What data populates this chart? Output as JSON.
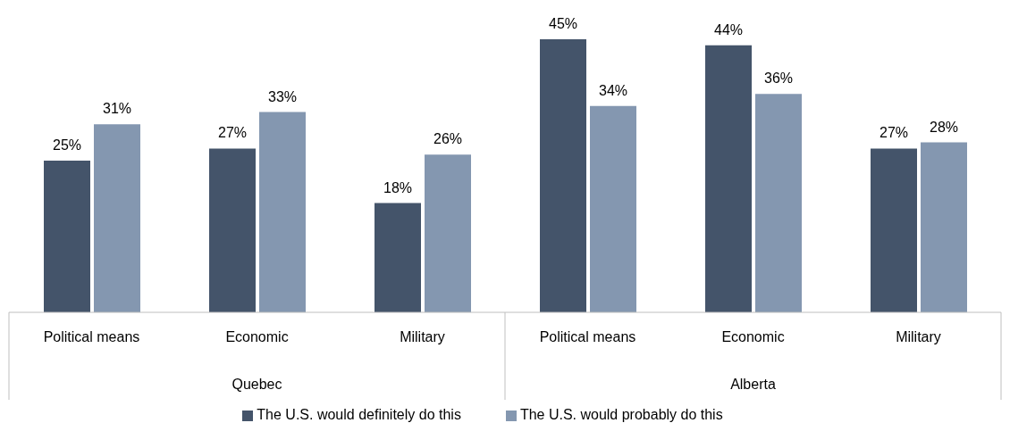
{
  "chart_data": {
    "type": "bar",
    "categories": [
      "Political means",
      "Economic",
      "Military",
      "Political means",
      "Economic",
      "Military"
    ],
    "series": [
      {
        "name": "The U.S. would definitely do this",
        "color": "#44546a",
        "values": [
          25,
          27,
          18,
          45,
          44,
          27
        ],
        "value_labels": [
          "25%",
          "27%",
          "18%",
          "45%",
          "44%",
          "27%"
        ]
      },
      {
        "name": "The U.S. would probably do this",
        "color": "#8497b0",
        "values": [
          31,
          33,
          26,
          34,
          36,
          28
        ],
        "value_labels": [
          "31%",
          "33%",
          "26%",
          "34%",
          "36%",
          "28%"
        ]
      }
    ],
    "annotations": [
      "Quebec",
      "Alberta"
    ],
    "legend": "bottom",
    "grid": false
  }
}
